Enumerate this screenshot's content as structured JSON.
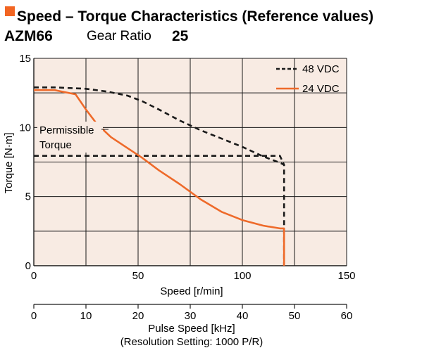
{
  "header": {
    "title": "Speed – Torque Characteristics (Reference values)",
    "model": "AZM66",
    "gear_ratio_label": "Gear Ratio",
    "gear_ratio_value": "25"
  },
  "colors": {
    "title_marker": "#f26522",
    "plot_bg": "#f8ebe3",
    "grid": "#1a1a1a",
    "series_48": "#1a1a1a",
    "series_24": "#ee6a2a"
  },
  "chart_data": {
    "type": "line",
    "xlabel": "Speed [r/min]",
    "ylabel": "Torque [N·m]",
    "xlim": [
      0,
      150
    ],
    "ylim": [
      0,
      15
    ],
    "xticks": [
      0,
      50,
      100,
      150
    ],
    "yticks": [
      0,
      5,
      10,
      15
    ],
    "grid": true,
    "legend_position": "top-right",
    "secondary_x": {
      "xlabel": "Pulse Speed [kHz]",
      "sublabel": "(Resolution Setting: 1000 P/R)",
      "xlim": [
        0,
        60
      ],
      "xticks": [
        0,
        10,
        20,
        30,
        40,
        50,
        60
      ]
    },
    "series": [
      {
        "name": "48 VDC",
        "style": "dashed",
        "x": [
          0,
          10,
          25,
          35,
          45,
          52,
          60,
          70,
          80,
          90,
          100,
          110,
          118,
          120,
          120
        ],
        "y": [
          12.9,
          12.9,
          12.8,
          12.6,
          12.3,
          11.9,
          11.3,
          10.5,
          9.8,
          9.2,
          8.6,
          7.9,
          7.45,
          7.3,
          0
        ]
      },
      {
        "name": "24 VDC",
        "style": "solid",
        "x": [
          0,
          10,
          20,
          25,
          30,
          37,
          45,
          52,
          60,
          70,
          80,
          90,
          100,
          110,
          118,
          120,
          120
        ],
        "y": [
          12.7,
          12.7,
          12.4,
          11.3,
          10.3,
          9.3,
          8.5,
          7.8,
          6.9,
          5.9,
          4.8,
          3.9,
          3.3,
          2.9,
          2.7,
          2.7,
          0
        ]
      },
      {
        "name": "Permissible Torque",
        "style": "dashed",
        "x": [
          0,
          118,
          120
        ],
        "y": [
          7.95,
          7.95,
          7.3
        ]
      }
    ],
    "annotations": [
      {
        "text_lines": [
          "Permissible",
          "Torque"
        ]
      }
    ]
  }
}
